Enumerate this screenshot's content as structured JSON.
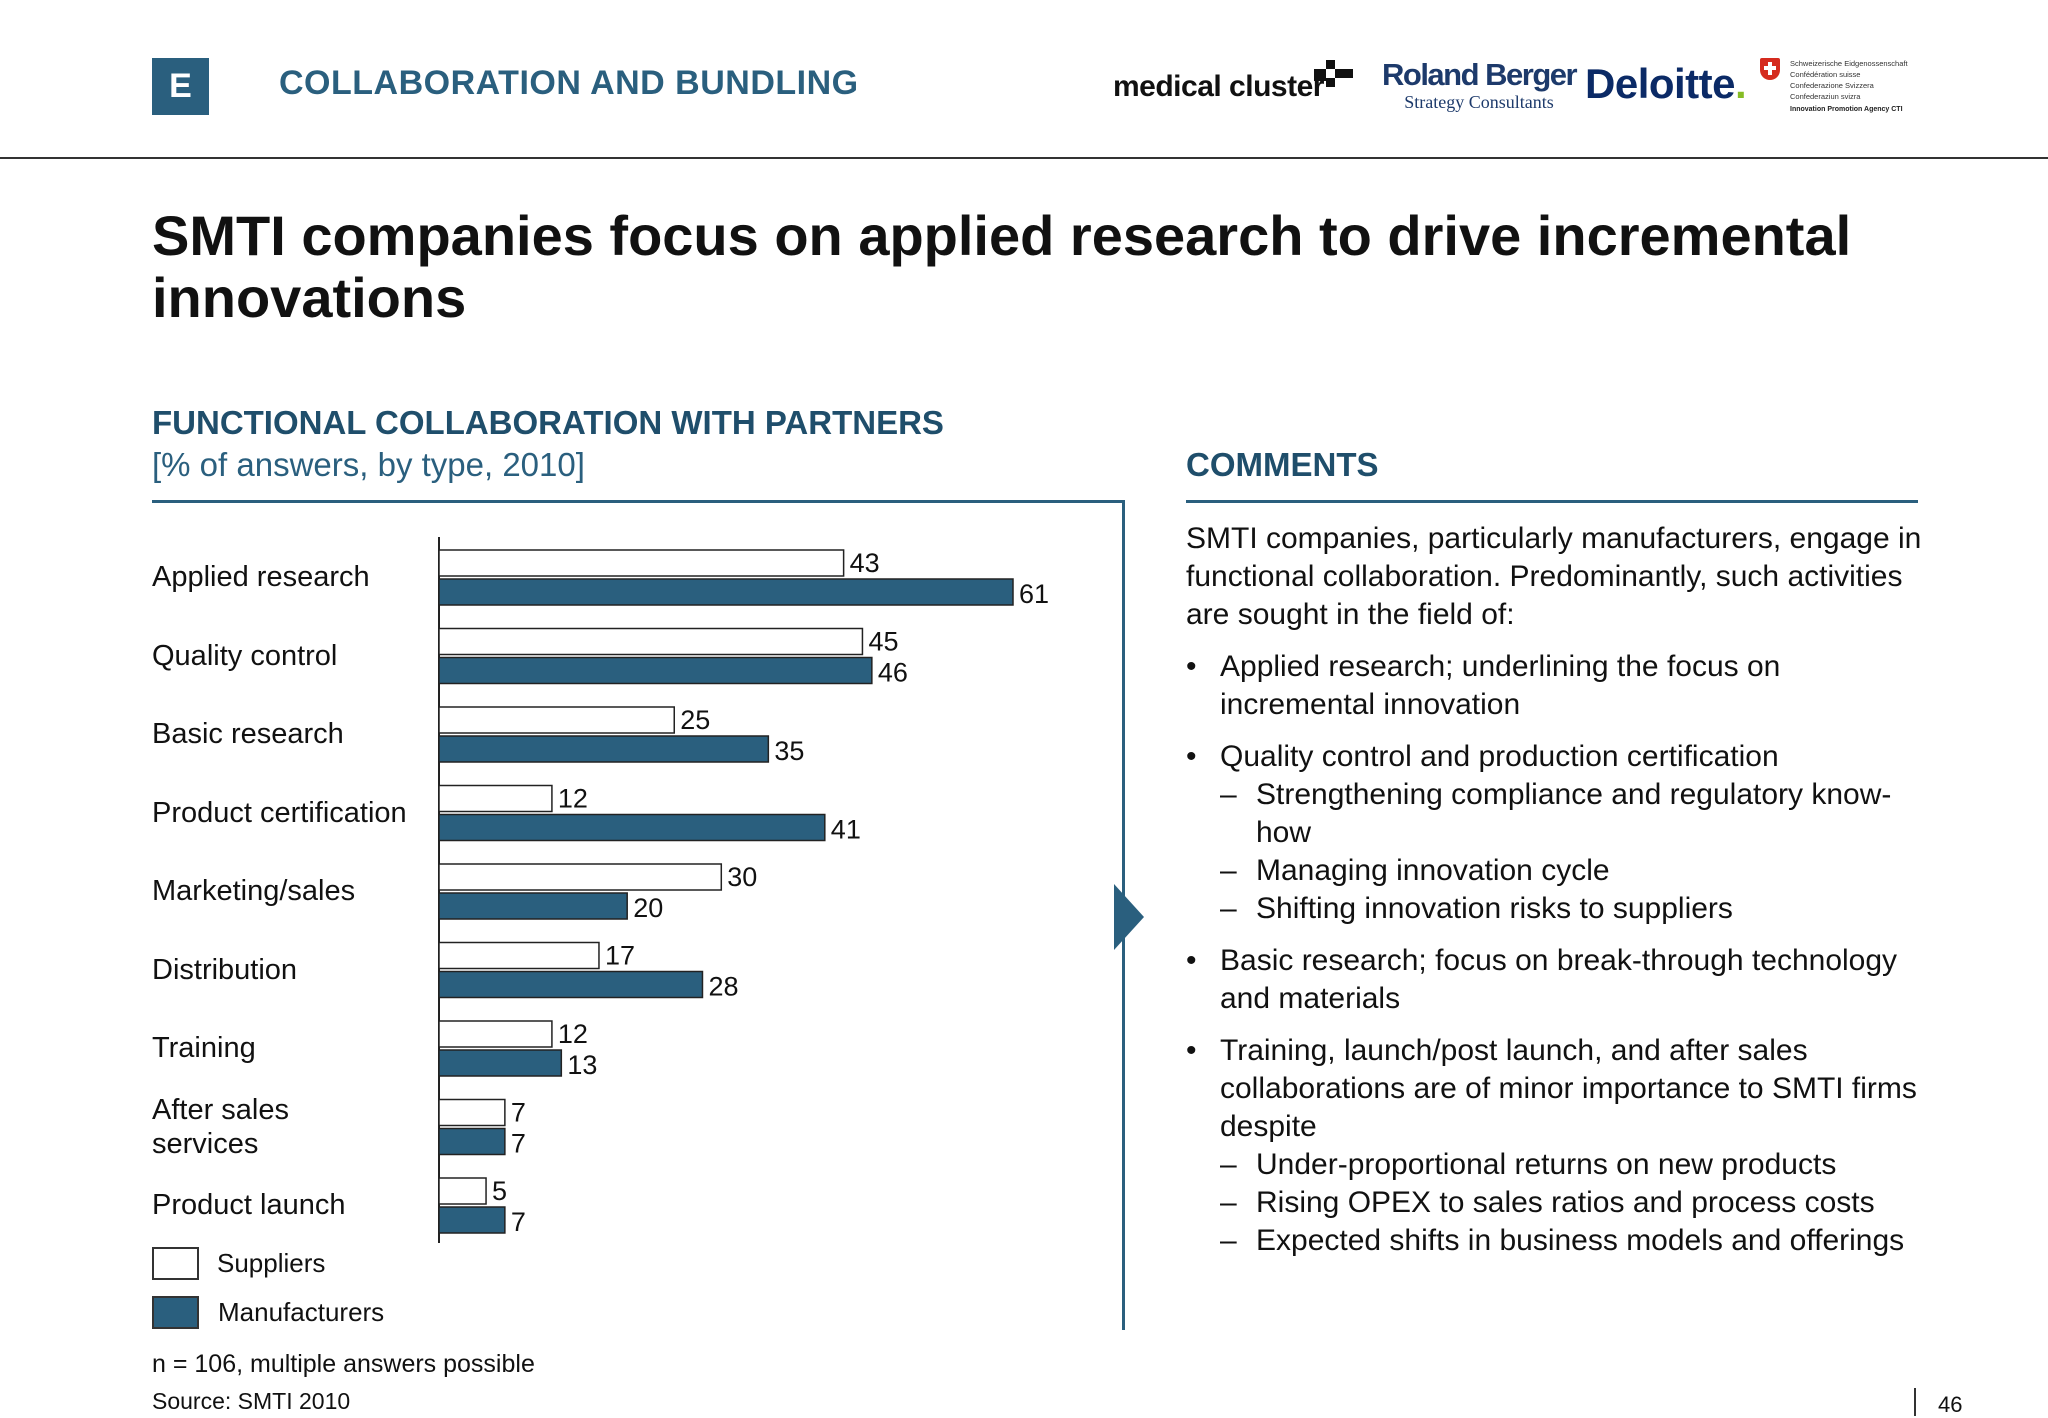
{
  "header": {
    "section_letter": "E",
    "section_title": "COLLABORATION AND BUNDLING",
    "logos": {
      "medical_cluster": "medical cluster",
      "roland_berger_1": "Roland Berger",
      "roland_berger_2": "Strategy Consultants",
      "deloitte": "Deloitte",
      "deloitte_dot": ".",
      "swiss_lines": [
        "Schweizerische Eidgenossenschaft",
        "Confédération suisse",
        "Confederazione Svizzera",
        "Confederaziun svizra"
      ],
      "swiss_agency": "Innovation Promotion Agency CTI"
    }
  },
  "title": "SMTI companies focus on applied research to drive incremental innovations",
  "chart_panel": {
    "title": "FUNCTIONAL COLLABORATION WITH PARTNERS",
    "subtitle": "[% of answers, by type, 2010]"
  },
  "chart_data": {
    "type": "bar",
    "orientation": "horizontal",
    "categories": [
      "Applied research",
      "Quality control",
      "Basic research",
      "Product certification",
      "Marketing/sales",
      "Distribution",
      "Training",
      "After sales services",
      "Product launch"
    ],
    "category_lines": [
      [
        "Applied research"
      ],
      [
        "Quality control"
      ],
      [
        "Basic research"
      ],
      [
        "Product certification"
      ],
      [
        "Marketing/sales"
      ],
      [
        "Distribution"
      ],
      [
        "Training"
      ],
      [
        "After sales",
        "services"
      ],
      [
        "Product launch"
      ]
    ],
    "series": [
      {
        "name": "Suppliers",
        "values": [
          43,
          45,
          25,
          12,
          30,
          17,
          12,
          7,
          5
        ],
        "color": "#ffffff"
      },
      {
        "name": "Manufacturers",
        "values": [
          61,
          46,
          35,
          41,
          20,
          28,
          13,
          7,
          7
        ],
        "color": "#2a5f7e"
      }
    ],
    "xlim": [
      0,
      61
    ],
    "legend_position": "bottom-left",
    "data_labels": true
  },
  "footnote": "n = 106, multiple answers possible",
  "source": "Source:  SMTI 2010",
  "comments": {
    "title": "COMMENTS",
    "intro": "SMTI companies, particularly manufacturers, engage in functional collaboration. Predominantly, such activities are sought in the field of:",
    "bullet_symbol": "•",
    "dash_symbol": "–",
    "bullets": [
      {
        "text": "Applied research; underlining the focus on incremental innovation",
        "subs": []
      },
      {
        "text": "Quality control and production certification",
        "subs": [
          "Strengthening compliance and regulatory know-how",
          "Managing innovation cycle",
          "Shifting innovation risks to suppliers"
        ]
      },
      {
        "text": "Basic research; focus on break-through technology and materials",
        "subs": []
      },
      {
        "text": "Training, launch/post launch, and after sales collaborations are of minor importance to SMTI firms despite",
        "subs": [
          "Under-proportional returns on new products",
          "Rising OPEX to sales ratios and process costs",
          "Expected shifts in business models and offerings"
        ]
      }
    ]
  },
  "page_number": "46"
}
